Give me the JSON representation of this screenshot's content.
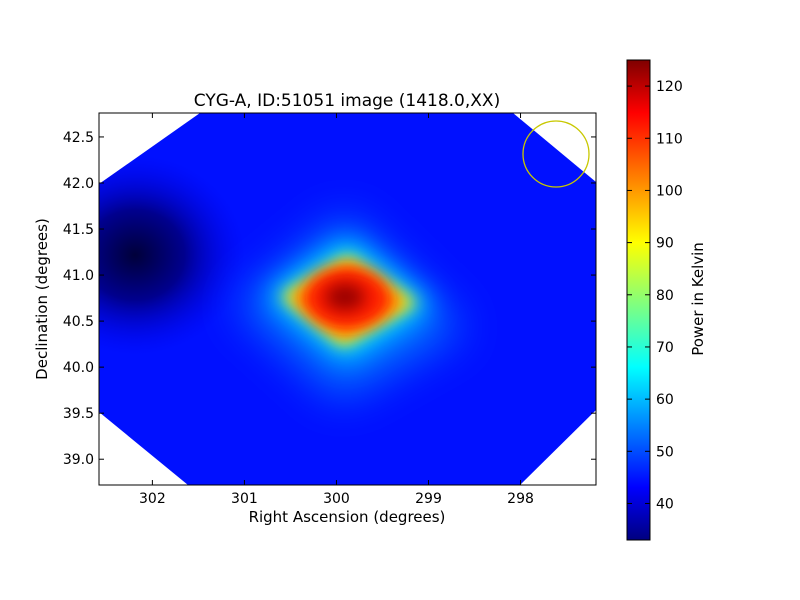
{
  "chart_data": {
    "type": "heatmap",
    "title": "CYG-A, ID:51051 image (1418.0,XX)",
    "xlabel": "Right Ascension (degrees)",
    "ylabel": "Declination (degrees)",
    "xlim": [
      302.58,
      297.18
    ],
    "ylim": [
      38.72,
      42.76
    ],
    "x_axis_reversed": true,
    "xticks": [
      302,
      301,
      300,
      299,
      298
    ],
    "yticks": [
      39.0,
      39.5,
      40.0,
      40.5,
      41.0,
      41.5,
      42.0,
      42.5
    ],
    "ytick_labels": [
      "39.0",
      "39.5",
      "40.0",
      "40.5",
      "41.0",
      "41.5",
      "42.0",
      "42.5"
    ],
    "colorbar": {
      "label": "Power in Kelvin",
      "colormap": "jet",
      "range": [
        33,
        125
      ],
      "ticks": [
        40,
        50,
        60,
        70,
        80,
        90,
        100,
        110,
        120
      ]
    },
    "background_level": 45,
    "peak": {
      "ra": 299.9,
      "dec": 40.72,
      "value": 125
    },
    "cold_region": {
      "ra": 302.1,
      "dec": 41.3,
      "value": 33
    },
    "beam_circle": {
      "ra": 297.6,
      "dec": 42.3,
      "radius_deg": 0.36,
      "color": "#c8c800"
    },
    "coverage_mask": "octagon",
    "grid": false,
    "legend": "none"
  }
}
